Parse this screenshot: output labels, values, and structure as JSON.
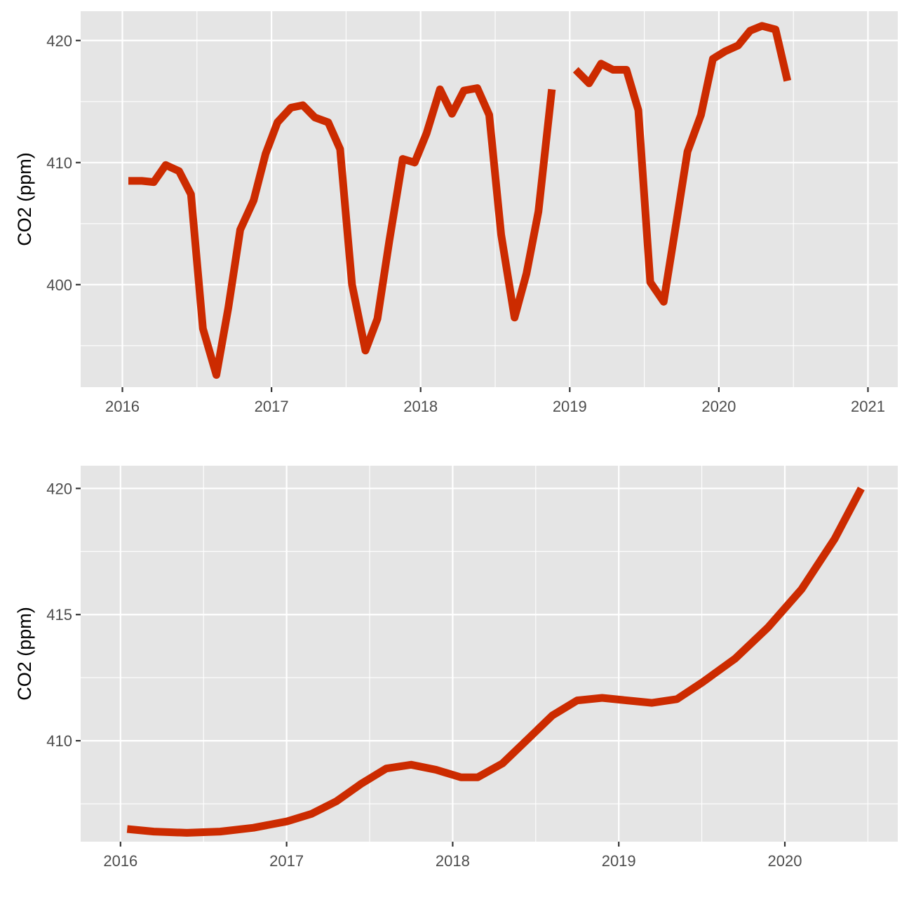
{
  "colors": {
    "line": "#CC2B00",
    "panel": "#e5e5e5",
    "grid": "#ffffff",
    "tick_text": "#4d4d4d"
  },
  "chart_data": [
    {
      "type": "line",
      "title": "",
      "xlabel": "",
      "ylabel": "CO2 (ppm)",
      "x_unit": "year",
      "xlim": [
        2015.72,
        2021.2
      ],
      "ylim": [
        391.6,
        422.4
      ],
      "x_ticks": [
        2016,
        2017,
        2018,
        2019,
        2020,
        2021
      ],
      "x_tick_labels": [
        "2016",
        "2017",
        "2018",
        "2019",
        "2020",
        "2021"
      ],
      "y_ticks": [
        400,
        410,
        420
      ],
      "y_tick_labels": [
        "400",
        "410",
        "420"
      ],
      "grid": true,
      "series": [
        {
          "segments": [
            {
              "x": [
                2016.04,
                2016.13,
                2016.21,
                2016.29,
                2016.38,
                2016.46,
                2016.54,
                2016.63,
                2016.71,
                2016.79,
                2016.88,
                2016.96,
                2017.04,
                2017.13,
                2017.21,
                2017.29,
                2017.38,
                2017.46,
                2017.54,
                2017.63,
                2017.71,
                2017.79,
                2017.88,
                2017.96,
                2018.04,
                2018.13,
                2018.21,
                2018.29,
                2018.38,
                2018.46,
                2018.54,
                2018.63,
                2018.71,
                2018.79,
                2018.88
              ],
              "y": [
                408.5,
                408.5,
                408.4,
                409.8,
                409.3,
                407.4,
                396.4,
                392.6,
                398.1,
                404.5,
                406.9,
                410.7,
                413.3,
                414.5,
                414.7,
                413.7,
                413.3,
                411.1,
                400.0,
                394.6,
                397.2,
                403.6,
                410.3,
                410.0,
                412.4,
                416.0,
                414.0,
                415.9,
                416.1,
                413.9,
                404.1,
                397.3,
                400.9,
                406.0,
                416.0
              ]
            },
            {
              "x": [
                2019.04,
                2019.13,
                2019.21,
                2019.29,
                2019.38,
                2019.46,
                2019.54,
                2019.63,
                2019.71,
                2019.79,
                2019.88,
                2019.96,
                2020.04,
                2020.13,
                2020.21,
                2020.29,
                2020.38,
                2020.46
              ],
              "y": [
                417.6,
                416.5,
                418.1,
                417.6,
                417.6,
                414.3,
                400.2,
                398.6,
                404.7,
                410.9,
                413.9,
                418.5,
                419.1,
                419.6,
                420.8,
                421.2,
                420.9,
                416.7
              ]
            }
          ]
        }
      ]
    },
    {
      "type": "line",
      "title": "",
      "xlabel": "",
      "ylabel": "CO2 (ppm)",
      "x_unit": "year",
      "xlim": [
        2015.76,
        2020.68
      ],
      "ylim": [
        406.0,
        420.9
      ],
      "x_ticks": [
        2016,
        2017,
        2018,
        2019,
        2020
      ],
      "x_tick_labels": [
        "2016",
        "2017",
        "2018",
        "2019",
        "2020"
      ],
      "y_ticks": [
        410,
        415,
        420
      ],
      "y_tick_labels": [
        "410",
        "415",
        "420"
      ],
      "grid": true,
      "series": [
        {
          "segments": [
            {
              "x": [
                2016.04,
                2016.2,
                2016.4,
                2016.6,
                2016.8,
                2017.0,
                2017.15,
                2017.3,
                2017.45,
                2017.6,
                2017.75,
                2017.9,
                2018.05,
                2018.15,
                2018.3,
                2018.45,
                2018.6,
                2018.75,
                2018.9,
                2019.05,
                2019.2,
                2019.35,
                2019.5,
                2019.7,
                2019.9,
                2020.1,
                2020.3,
                2020.46
              ],
              "y": [
                406.5,
                406.4,
                406.35,
                406.4,
                406.55,
                406.8,
                407.1,
                407.6,
                408.3,
                408.9,
                409.05,
                408.85,
                408.55,
                408.55,
                409.1,
                410.05,
                411.0,
                411.6,
                411.7,
                411.6,
                411.5,
                411.65,
                412.3,
                413.25,
                414.5,
                416.0,
                418.0,
                420.0
              ]
            }
          ]
        }
      ]
    }
  ]
}
